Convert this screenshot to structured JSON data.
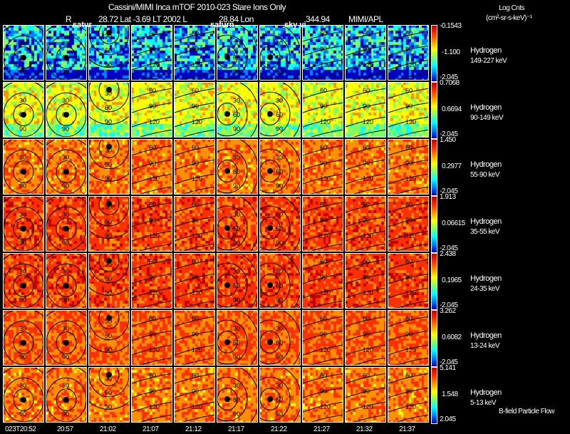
{
  "header": {
    "title": "Cassini/MIMI Inca mTOF  2010-023    Stare    Ions Only",
    "r_label": "R",
    "position": "28.72 Lat -3.69 LT 2002 L",
    "lon": "28.84 Lon",
    "lon_value": "344.94",
    "credit": "MIMI/APL",
    "units_line1": "Log Cnts",
    "units_line2": "(cm²-sr-s-keV)⁻¹"
  },
  "overlays": [
    "satur",
    "saturn",
    "sky vi"
  ],
  "footer_label": "B-field Particle Flow",
  "chart_data": {
    "type": "heatmap",
    "title": "Cassini/MIMI Inca mTOF 2010-023 Stare Ions Only",
    "x_tick_labels": [
      "023T20:52",
      "20:57",
      "21:02",
      "21:07",
      "21:12",
      "21:17",
      "21:22",
      "21:27",
      "21:32",
      "21:37"
    ],
    "rows": [
      {
        "species": "Hydrogen",
        "energy": "149-227 keV",
        "cmax": "-0.1543",
        "cmid": "-1.100",
        "cmin": "-2.045",
        "level": 0.25
      },
      {
        "species": "Hydrogen",
        "energy": "90-149 keV",
        "cmax": "0.7068",
        "cmid": "0.6694",
        "cmin": "-2.045",
        "level": 0.55
      },
      {
        "species": "Hydrogen",
        "energy": "55-90 keV",
        "cmax": "1.450",
        "cmid": "0.2977",
        "cmin": "-2.045",
        "level": 0.72
      },
      {
        "species": "Hydrogen",
        "energy": "35-55 keV",
        "cmax": "1.913",
        "cmid": "0.06615",
        "cmin": "-2.045",
        "level": 0.8
      },
      {
        "species": "Hydrogen",
        "energy": "24-35 keV",
        "cmax": "2.438",
        "cmid": "0.1965",
        "cmin": "-2.045",
        "level": 0.8
      },
      {
        "species": "Hydrogen",
        "energy": "13-24 keV",
        "cmax": "3.262",
        "cmid": "0.6082",
        "cmin": "-2.045",
        "level": 0.76
      },
      {
        "species": "Hydrogen",
        "energy": "5-13 keV",
        "cmax": "5.141",
        "cmid": "1.548",
        "cmin": "2.045",
        "level": 0.72
      }
    ],
    "contour_labels": [
      "30",
      "60",
      "90",
      "120",
      "150"
    ],
    "colormap": [
      "#0000c0",
      "#0080ff",
      "#00ffff",
      "#80ff60",
      "#ffff00",
      "#ff9000",
      "#ff3000",
      "#c00000"
    ]
  }
}
